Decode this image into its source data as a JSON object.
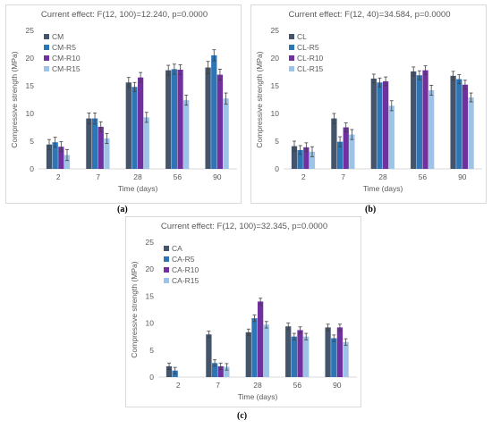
{
  "captions": [
    "(a)",
    "(b)",
    "(c)"
  ],
  "colors": [
    "#44546a",
    "#2e75b6",
    "#7030a0",
    "#9dc3e6"
  ],
  "chart_data": [
    {
      "type": "bar",
      "title": "Current effect: F(12, 100)=12.240, p=0.0000",
      "xlabel": "Time (days)",
      "ylabel": "Compressive strength (MPa)",
      "ylim": [
        0,
        25
      ],
      "yticks": [
        0,
        5,
        10,
        15,
        20,
        25
      ],
      "categories": [
        "2",
        "7",
        "28",
        "56",
        "90"
      ],
      "legend_position": "top-left",
      "grid": false,
      "error_bars": true,
      "series": [
        {
          "name": "CM",
          "values": [
            4.4,
            9.1,
            15.6,
            17.8,
            18.3
          ],
          "errors": [
            0.9,
            1.0,
            0.9,
            0.9,
            1.1
          ]
        },
        {
          "name": "CM-R5",
          "values": [
            4.8,
            9.1,
            14.8,
            18.0,
            20.5
          ],
          "errors": [
            0.9,
            1.0,
            0.8,
            0.9,
            1.0
          ]
        },
        {
          "name": "CM-R10",
          "values": [
            4.0,
            7.6,
            16.5,
            17.9,
            17.0
          ],
          "errors": [
            0.9,
            0.9,
            0.9,
            0.9,
            1.0
          ]
        },
        {
          "name": "CM-R15",
          "values": [
            2.5,
            5.5,
            9.3,
            12.4,
            12.7
          ],
          "errors": [
            1.0,
            0.9,
            0.9,
            0.9,
            1.0
          ]
        }
      ]
    },
    {
      "type": "bar",
      "title": "Current effect: F(12, 40)=34.584, p=0.0000",
      "xlabel": "Time (days)",
      "ylabel": "Compressive strength (MPa)",
      "ylim": [
        0,
        25
      ],
      "yticks": [
        0,
        5,
        10,
        15,
        20,
        25
      ],
      "categories": [
        "2",
        "7",
        "28",
        "56",
        "90"
      ],
      "legend_position": "top-left",
      "grid": false,
      "error_bars": true,
      "series": [
        {
          "name": "CL",
          "values": [
            4.1,
            9.1,
            16.3,
            17.6,
            16.8
          ],
          "errors": [
            0.9,
            0.9,
            0.8,
            0.8,
            0.8
          ]
        },
        {
          "name": "CL-R5",
          "values": [
            3.4,
            4.9,
            15.6,
            16.9,
            16.2
          ],
          "errors": [
            0.8,
            0.9,
            0.8,
            0.8,
            0.8
          ]
        },
        {
          "name": "CL-R10",
          "values": [
            3.9,
            7.5,
            15.8,
            17.8,
            15.2
          ],
          "errors": [
            0.8,
            0.8,
            0.8,
            0.8,
            0.8
          ]
        },
        {
          "name": "CL-R15",
          "values": [
            3.1,
            6.2,
            11.4,
            14.2,
            12.9
          ],
          "errors": [
            0.9,
            0.9,
            0.9,
            0.9,
            0.8
          ]
        }
      ]
    },
    {
      "type": "bar",
      "title": "Current effect: F(12, 100)=32.345, p=0.0000",
      "xlabel": "Time (days)",
      "ylabel": "Compressive strength (MPa)",
      "ylim": [
        0,
        25
      ],
      "yticks": [
        0,
        5,
        10,
        15,
        20,
        25
      ],
      "categories": [
        "2",
        "7",
        "28",
        "56",
        "90"
      ],
      "legend_position": "top-left",
      "grid": false,
      "error_bars": true,
      "series": [
        {
          "name": "CA",
          "values": [
            2.0,
            7.9,
            8.3,
            9.4,
            9.2
          ],
          "errors": [
            0.6,
            0.6,
            0.6,
            0.6,
            0.6
          ]
        },
        {
          "name": "CA-R5",
          "values": [
            1.2,
            2.6,
            10.9,
            7.5,
            7.2
          ],
          "errors": [
            0.6,
            0.6,
            0.6,
            0.6,
            0.6
          ]
        },
        {
          "name": "CA-R10",
          "values": [
            0,
            2.0,
            14.0,
            8.7,
            9.2
          ],
          "errors": [
            0,
            0.6,
            0.6,
            0.6,
            0.6
          ]
        },
        {
          "name": "CA-R15",
          "values": [
            0,
            1.9,
            9.7,
            7.5,
            6.5
          ],
          "errors": [
            0,
            0.6,
            0.6,
            0.6,
            0.6
          ]
        }
      ]
    }
  ]
}
